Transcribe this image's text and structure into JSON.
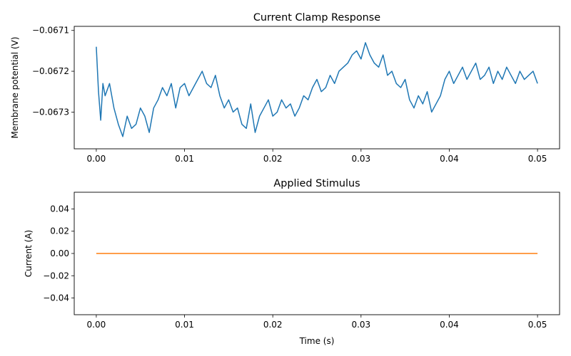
{
  "chart_data": [
    {
      "type": "line",
      "title": "Current Clamp Response",
      "xlabel": "",
      "ylabel": "Membrane potential (V)",
      "xlim": [
        -0.0025,
        0.0525
      ],
      "ylim": [
        -0.06739,
        -0.06709
      ],
      "xticks": [
        0.0,
        0.01,
        0.02,
        0.03,
        0.04,
        0.05
      ],
      "xtick_labels": [
        "0.00",
        "0.01",
        "0.02",
        "0.03",
        "0.04",
        "0.05"
      ],
      "yticks": [
        -0.0673,
        -0.0672,
        -0.0671
      ],
      "ytick_labels": [
        "−0.0673",
        "−0.0672",
        "−0.0671"
      ],
      "grid": false,
      "series": [
        {
          "color": "#1f77b4",
          "x": [
            0.0,
            0.00025,
            0.0005,
            0.00075,
            0.001,
            0.0015,
            0.002,
            0.0025,
            0.003,
            0.0035,
            0.004,
            0.0045,
            0.005,
            0.0055,
            0.006,
            0.0065,
            0.007,
            0.0075,
            0.008,
            0.0085,
            0.009,
            0.0095,
            0.01,
            0.0105,
            0.011,
            0.0115,
            0.012,
            0.0125,
            0.013,
            0.0135,
            0.014,
            0.0145,
            0.015,
            0.0155,
            0.016,
            0.0165,
            0.017,
            0.0175,
            0.018,
            0.0185,
            0.019,
            0.0195,
            0.02,
            0.0205,
            0.021,
            0.0215,
            0.022,
            0.0225,
            0.023,
            0.0235,
            0.024,
            0.0245,
            0.025,
            0.0255,
            0.026,
            0.0265,
            0.027,
            0.0275,
            0.028,
            0.0285,
            0.029,
            0.0295,
            0.03,
            0.0305,
            0.031,
            0.0315,
            0.032,
            0.0325,
            0.033,
            0.0335,
            0.034,
            0.0345,
            0.035,
            0.0355,
            0.036,
            0.0365,
            0.037,
            0.0375,
            0.038,
            0.0385,
            0.039,
            0.0395,
            0.04,
            0.0405,
            0.041,
            0.0415,
            0.042,
            0.0425,
            0.043,
            0.0435,
            0.044,
            0.0445,
            0.045,
            0.0455,
            0.046,
            0.0465,
            0.047,
            0.0475,
            0.048,
            0.0485,
            0.049,
            0.0495,
            0.05
          ],
          "values": [
            -0.06714,
            -0.06725,
            -0.06732,
            -0.06723,
            -0.06726,
            -0.06723,
            -0.06729,
            -0.06733,
            -0.06736,
            -0.06731,
            -0.06734,
            -0.06733,
            -0.06729,
            -0.06731,
            -0.06735,
            -0.06729,
            -0.06727,
            -0.06724,
            -0.06726,
            -0.06723,
            -0.06729,
            -0.06724,
            -0.06723,
            -0.06726,
            -0.06724,
            -0.06722,
            -0.0672,
            -0.06723,
            -0.06724,
            -0.06721,
            -0.06726,
            -0.06729,
            -0.06727,
            -0.0673,
            -0.06729,
            -0.06733,
            -0.06734,
            -0.06728,
            -0.06735,
            -0.06731,
            -0.06729,
            -0.06727,
            -0.06731,
            -0.0673,
            -0.06727,
            -0.06729,
            -0.06728,
            -0.06731,
            -0.06729,
            -0.06726,
            -0.06727,
            -0.06724,
            -0.06722,
            -0.06725,
            -0.06724,
            -0.06721,
            -0.06723,
            -0.0672,
            -0.06719,
            -0.06718,
            -0.06716,
            -0.06715,
            -0.06717,
            -0.06713,
            -0.06716,
            -0.06718,
            -0.06719,
            -0.06716,
            -0.06721,
            -0.0672,
            -0.06723,
            -0.06724,
            -0.06722,
            -0.06727,
            -0.06729,
            -0.06726,
            -0.06728,
            -0.06725,
            -0.0673,
            -0.06728,
            -0.06726,
            -0.06722,
            -0.0672,
            -0.06723,
            -0.06721,
            -0.06719,
            -0.06722,
            -0.0672,
            -0.06718,
            -0.06722,
            -0.06721,
            -0.06719,
            -0.06723,
            -0.0672,
            -0.06722,
            -0.06719,
            -0.06721,
            -0.06723,
            -0.0672,
            -0.06722,
            -0.06721,
            -0.0672,
            -0.06723
          ]
        }
      ]
    },
    {
      "type": "line",
      "title": "Applied Stimulus",
      "xlabel": "Time (s)",
      "ylabel": "Current (A)",
      "xlim": [
        -0.0025,
        0.0525
      ],
      "ylim": [
        -0.055,
        0.055
      ],
      "xticks": [
        0.0,
        0.01,
        0.02,
        0.03,
        0.04,
        0.05
      ],
      "xtick_labels": [
        "0.00",
        "0.01",
        "0.02",
        "0.03",
        "0.04",
        "0.05"
      ],
      "yticks": [
        0.04,
        0.02,
        0.0,
        -0.02,
        -0.04
      ],
      "ytick_labels": [
        "0.04",
        "0.02",
        "0.00",
        "−0.02",
        "−0.04"
      ],
      "grid": false,
      "series": [
        {
          "color": "#ff7f0e",
          "x": [
            0.0,
            0.05
          ],
          "values": [
            0.0,
            0.0
          ]
        }
      ]
    }
  ]
}
